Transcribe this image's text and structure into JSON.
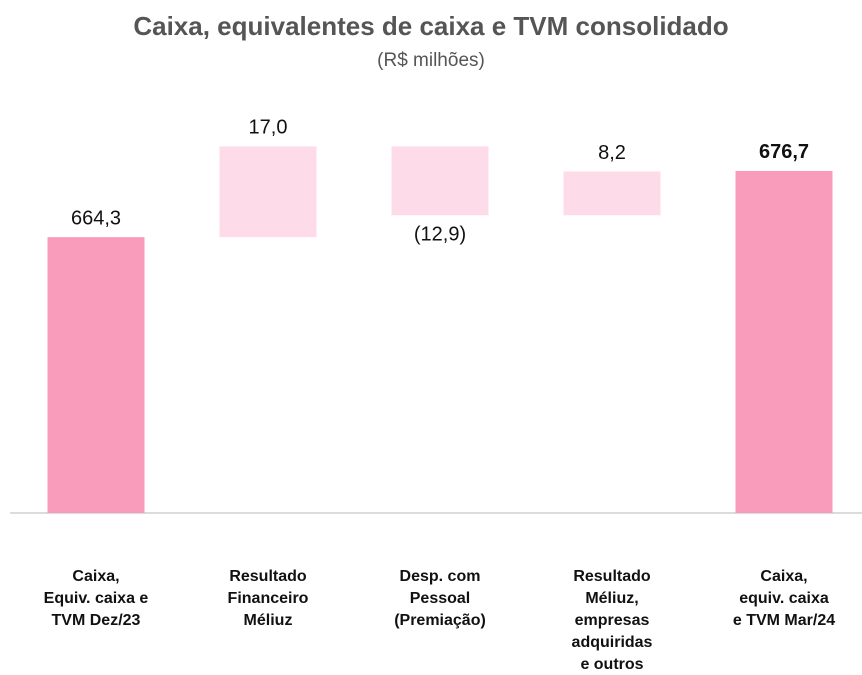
{
  "chart_data": {
    "type": "waterfall",
    "title": "Caixa, equivalentes de caixa e TVM consolidado",
    "subtitle": "(R$ milhões)",
    "categories": [
      "Caixa,\nEquiv. caixa e\nTVM Dez/23",
      "Resultado\nFinanceiro\nMéliuz",
      "Desp. com\nPessoal\n(Premiação)",
      "Resultado\nMéliuz,\nempresas\nadquiridas\ne outros",
      "Caixa,\nequiv. caixa\ne TVM Mar/24"
    ],
    "values": [
      664.3,
      17.0,
      -12.9,
      8.2,
      676.7
    ],
    "value_labels": [
      "664,3",
      "17,0",
      "(12,9)",
      "8,2",
      "676,7"
    ],
    "totals": [
      true,
      false,
      false,
      false,
      true
    ],
    "total_color": "#f99bbb",
    "change_color": "#fddbe8",
    "ylim": [
      612.6,
      690
    ]
  }
}
